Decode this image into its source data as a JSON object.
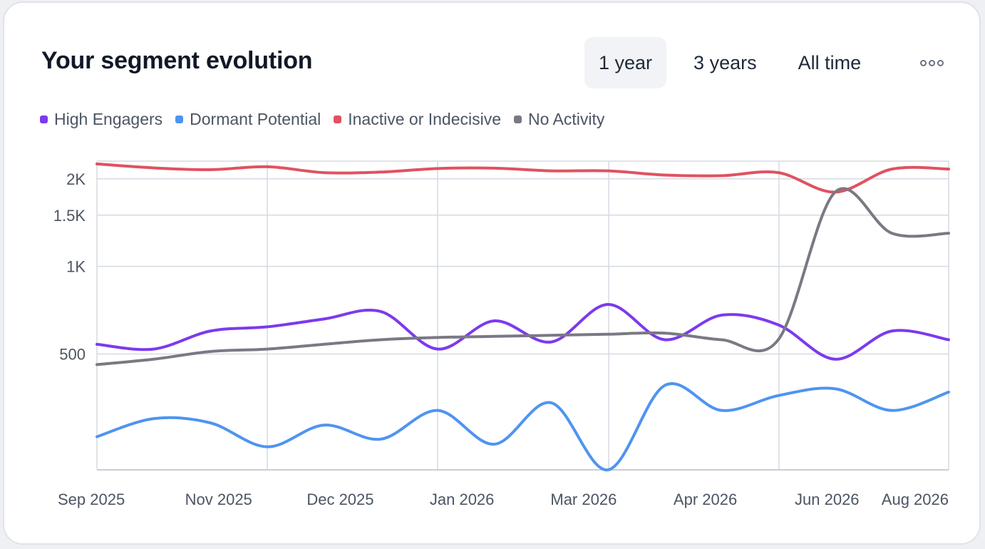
{
  "card": {
    "title": "Your segment evolution",
    "range_tabs": [
      {
        "label": "1 year",
        "active": true
      },
      {
        "label": "3 years",
        "active": false
      },
      {
        "label": "All time",
        "active": false
      }
    ],
    "more_icon": "more-horizontal-icon"
  },
  "chart_data": {
    "type": "line",
    "x_tick_labels": [
      "Sep 2025",
      "Nov 2025",
      "Dec 2025",
      "Jan 2026",
      "Mar 2026",
      "Apr 2026",
      "Jun 2026",
      "Aug 2026"
    ],
    "y_ticks": [
      500,
      1000,
      1500,
      2000
    ],
    "y_tick_labels": [
      "500",
      "1K",
      "1.5K",
      "2K"
    ],
    "ylim": [
      200,
      2300
    ],
    "y_scale": "log",
    "grid": true,
    "legend_position": "top-left",
    "series": [
      {
        "name": "High Engagers",
        "color": "#7c3aed",
        "values": [
          540,
          520,
          600,
          620,
          660,
          700,
          520,
          650,
          550,
          740,
          560,
          680,
          630,
          480,
          600,
          560
        ]
      },
      {
        "name": "Dormant Potential",
        "color": "#4f94f0",
        "values": [
          260,
          300,
          290,
          240,
          285,
          255,
          320,
          245,
          340,
          200,
          390,
          320,
          360,
          380,
          320,
          370
        ]
      },
      {
        "name": "Inactive or Indecisive",
        "color": "#e05260",
        "values": [
          2250,
          2180,
          2150,
          2200,
          2100,
          2110,
          2170,
          2175,
          2130,
          2130,
          2060,
          2050,
          2100,
          1800,
          2160,
          2160
        ]
      },
      {
        "name": "No Activity",
        "color": "#7a7983",
        "values": [
          460,
          480,
          510,
          520,
          540,
          560,
          570,
          575,
          580,
          585,
          590,
          560,
          560,
          1800,
          1300,
          1300
        ]
      }
    ]
  }
}
